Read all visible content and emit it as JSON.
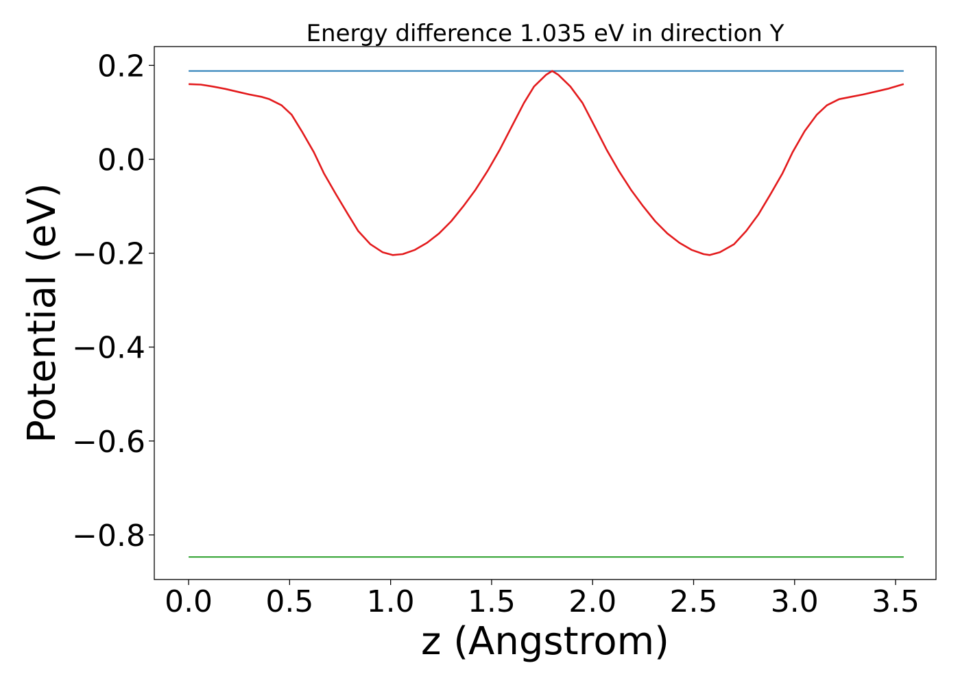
{
  "chart_data": {
    "type": "line",
    "title": "Energy difference 1.035 eV in direction Y",
    "xlabel": "z (Angstrom)",
    "ylabel": "Potential (eV)",
    "xlim": [
      -0.17,
      3.7
    ],
    "ylim": [
      -0.895,
      0.24
    ],
    "grid": false,
    "legend": "none",
    "x_ticks": [
      0.0,
      0.5,
      1.0,
      1.5,
      2.0,
      2.5,
      3.0,
      3.5
    ],
    "x_tick_labels": [
      "0.0",
      "0.5",
      "1.0",
      "1.5",
      "2.0",
      "2.5",
      "3.0",
      "3.5"
    ],
    "y_ticks": [
      0.2,
      0.0,
      -0.2,
      -0.4,
      -0.6,
      -0.8
    ],
    "y_tick_labels": [
      "0.2",
      "0.0",
      "−0.2",
      "−0.4",
      "−0.6",
      "−0.8"
    ],
    "series": [
      {
        "color": "#1f77b4",
        "x": [
          0.0,
          3.54
        ],
        "y": [
          0.188,
          0.188
        ]
      },
      {
        "color": "#2ca02c",
        "x": [
          0.0,
          3.54
        ],
        "y": [
          -0.847,
          -0.847
        ]
      },
      {
        "color": "#e31a1c",
        "x": [
          0.0,
          0.06,
          0.12,
          0.18,
          0.24,
          0.3,
          0.36,
          0.4,
          0.46,
          0.51,
          0.56,
          0.62,
          0.67,
          0.73,
          0.79,
          0.84,
          0.9,
          0.96,
          1.01,
          1.06,
          1.12,
          1.18,
          1.24,
          1.3,
          1.36,
          1.42,
          1.48,
          1.54,
          1.6,
          1.66,
          1.71,
          1.77,
          1.8,
          1.83,
          1.89,
          1.95,
          2.01,
          2.07,
          2.13,
          2.19,
          2.25,
          2.31,
          2.37,
          2.43,
          2.49,
          2.55,
          2.58,
          2.63,
          2.7,
          2.76,
          2.82,
          2.88,
          2.94,
          2.99,
          3.05,
          3.11,
          3.16,
          3.22,
          3.28,
          3.34,
          3.4,
          3.46,
          3.54
        ],
        "y": [
          0.16,
          0.159,
          0.155,
          0.15,
          0.144,
          0.138,
          0.133,
          0.128,
          0.115,
          0.095,
          0.06,
          0.015,
          -0.03,
          -0.075,
          -0.118,
          -0.153,
          -0.181,
          -0.198,
          -0.204,
          -0.202,
          -0.193,
          -0.178,
          -0.158,
          -0.132,
          -0.1,
          -0.065,
          -0.025,
          0.02,
          0.07,
          0.12,
          0.155,
          0.18,
          0.188,
          0.18,
          0.155,
          0.12,
          0.07,
          0.02,
          -0.025,
          -0.065,
          -0.1,
          -0.132,
          -0.158,
          -0.178,
          -0.193,
          -0.202,
          -0.204,
          -0.198,
          -0.181,
          -0.153,
          -0.118,
          -0.075,
          -0.03,
          0.015,
          0.06,
          0.095,
          0.115,
          0.128,
          0.133,
          0.138,
          0.144,
          0.15,
          0.16
        ]
      }
    ]
  }
}
